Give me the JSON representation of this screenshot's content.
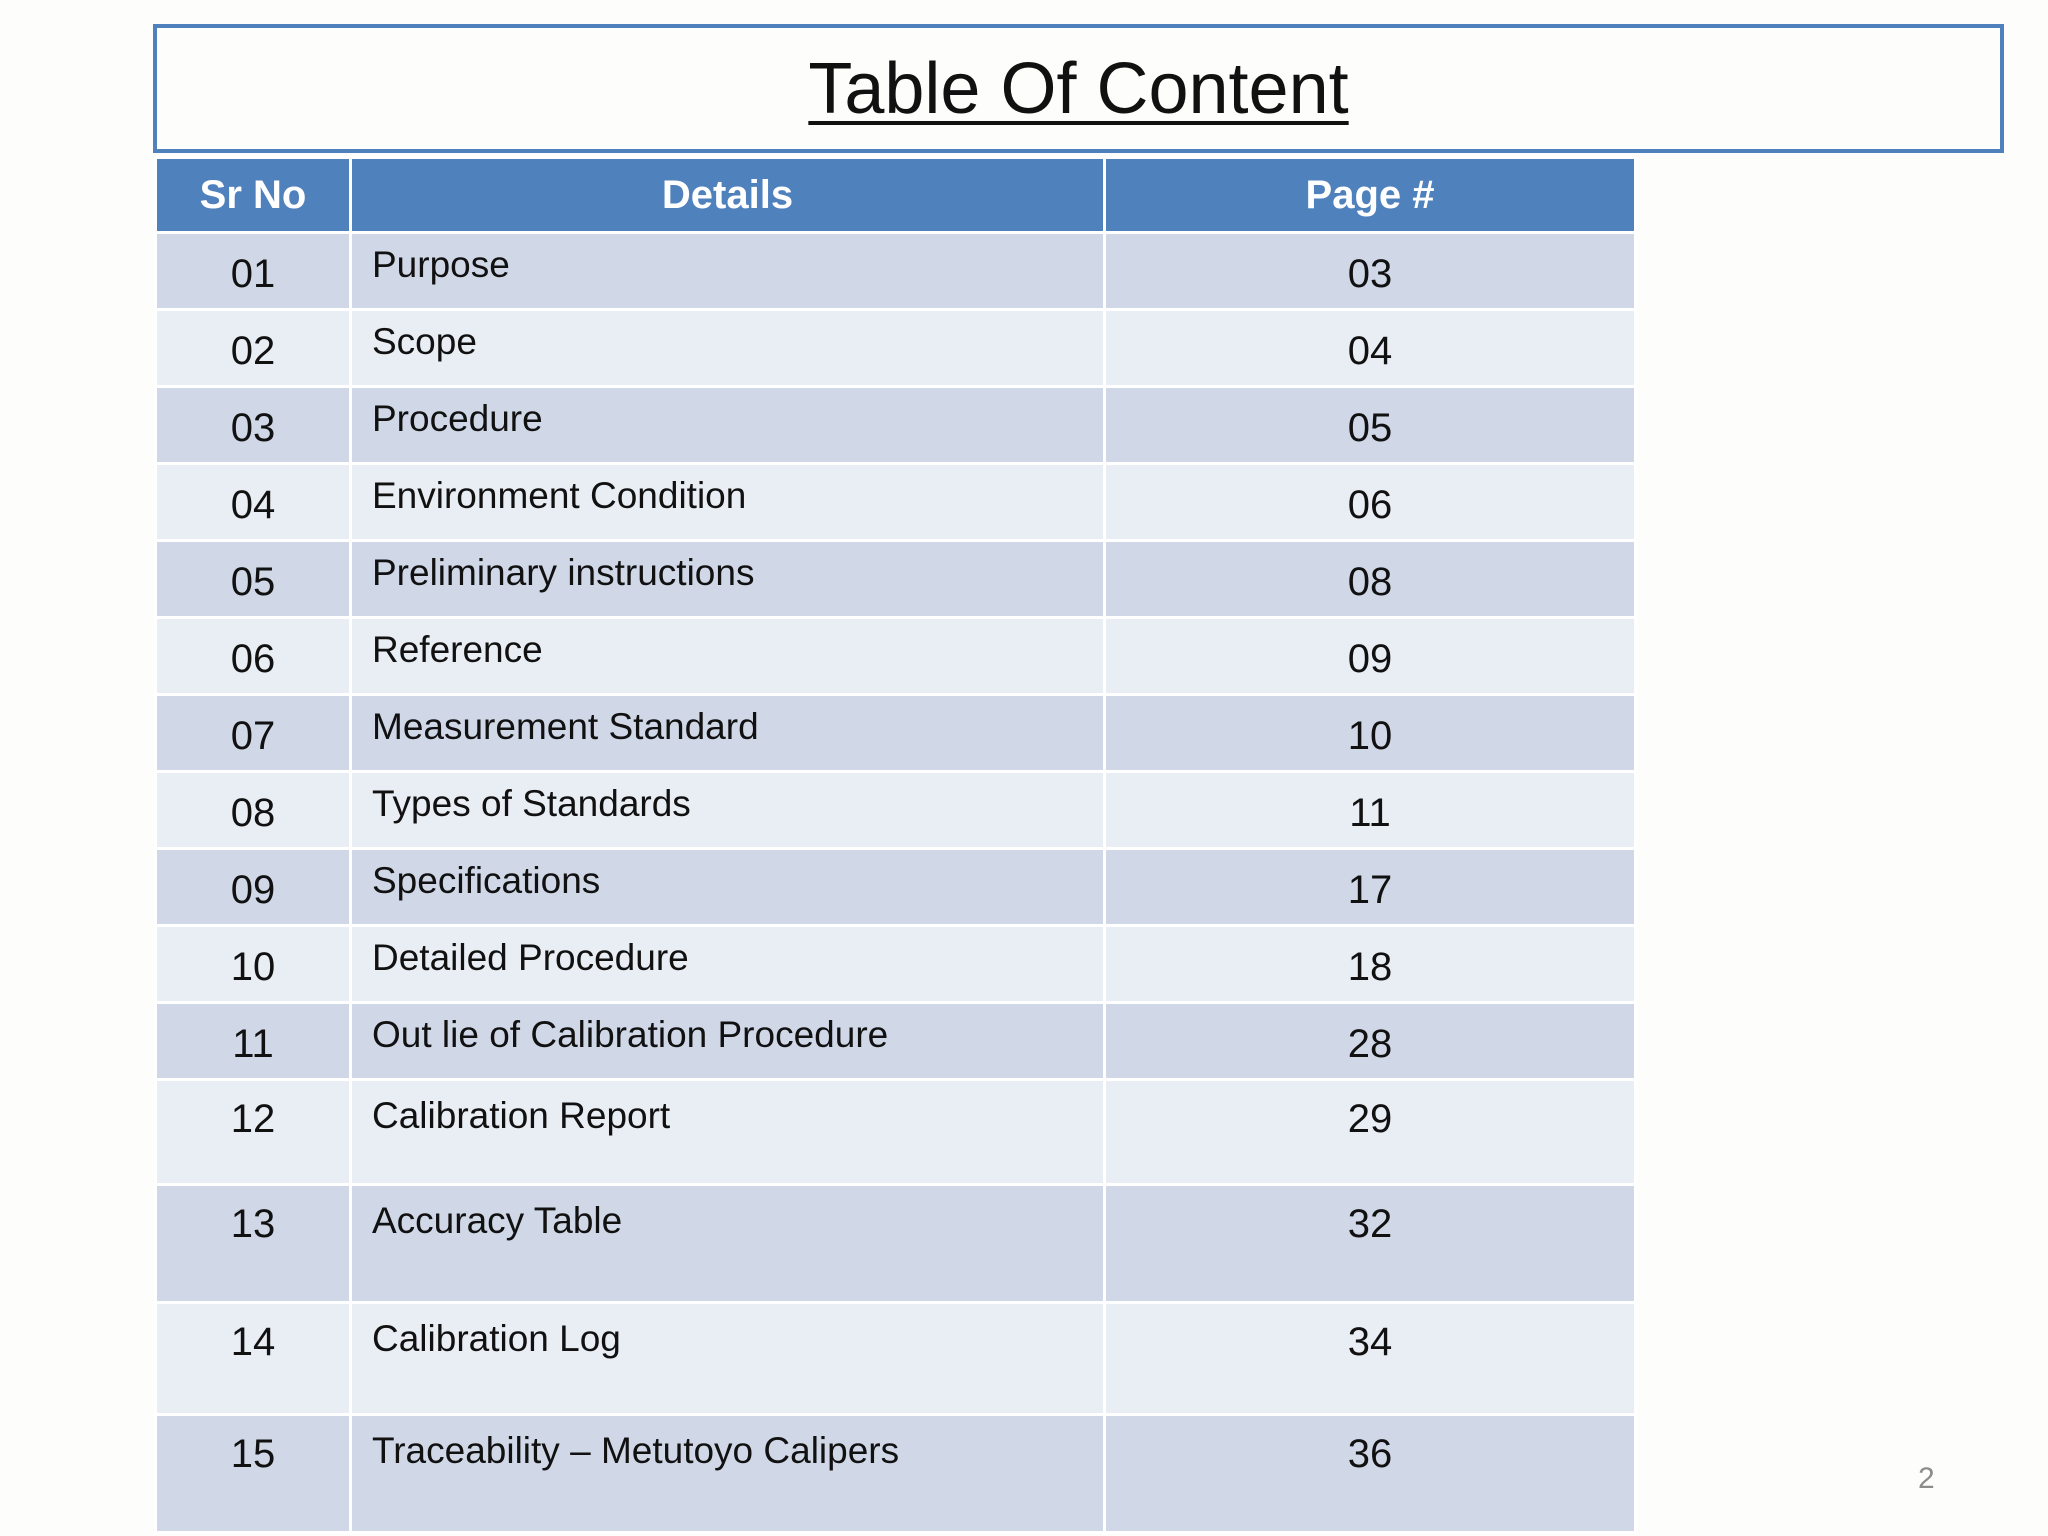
{
  "title": "Table Of Content",
  "colors": {
    "header_blue": "#4f81bd",
    "row_dark": "#d0d8e8",
    "row_light": "#e9edf4"
  },
  "table": {
    "headers": {
      "sr_no": "Sr No",
      "details": "Details",
      "page": "Page #"
    },
    "rows": [
      {
        "sr": "01",
        "detail": "Purpose",
        "page": "03"
      },
      {
        "sr": "02",
        "detail": "Scope",
        "page": "04"
      },
      {
        "sr": "03",
        "detail": "Procedure",
        "page": "05"
      },
      {
        "sr": "04",
        "detail": "Environment Condition",
        "page": "06"
      },
      {
        "sr": "05",
        "detail": "Preliminary instructions",
        "page": "08"
      },
      {
        "sr": "06",
        "detail": "Reference",
        "page": "09"
      },
      {
        "sr": "07",
        "detail": "Measurement Standard",
        "page": "10"
      },
      {
        "sr": "08",
        "detail": "Types of Standards",
        "page": "11"
      },
      {
        "sr": "09",
        "detail": "Specifications",
        "page": "17"
      },
      {
        "sr": "10",
        "detail": "Detailed  Procedure",
        "page": "18"
      },
      {
        "sr": "11",
        "detail": "Out lie of Calibration Procedure",
        "page": "28"
      },
      {
        "sr": "12",
        "detail": "Calibration Report",
        "page": "29"
      },
      {
        "sr": "13",
        "detail": "Accuracy Table",
        "page": "32"
      },
      {
        "sr": "14",
        "detail": "Calibration Log",
        "page": "34"
      },
      {
        "sr": "15",
        "detail": "Traceability – Metutoyo Calipers",
        "page": "36"
      }
    ]
  },
  "slide_number": "2"
}
